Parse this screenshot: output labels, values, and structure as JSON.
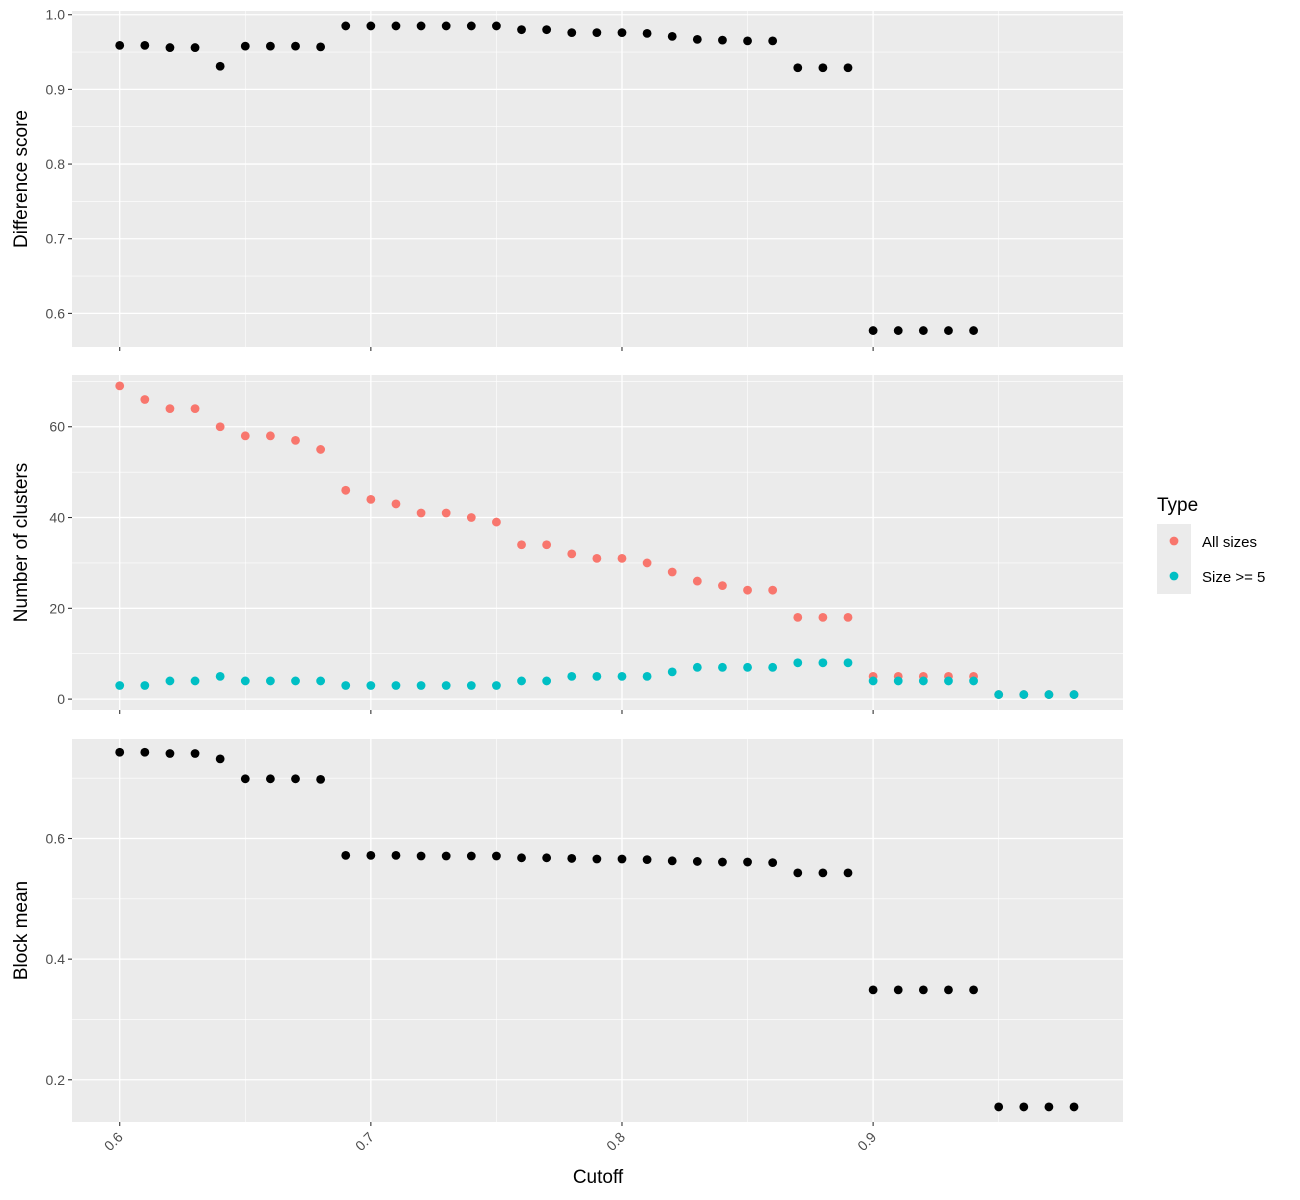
{
  "chart_data": [
    {
      "type": "scatter",
      "ylabel": "Difference score",
      "ylim": [
        0.555,
        1.005
      ],
      "yticks": [
        0.6,
        0.7,
        0.8,
        0.9,
        1.0
      ],
      "ytick_labels": [
        "0.6",
        "0.7",
        "0.8",
        "0.9",
        "1.0"
      ],
      "series": [
        {
          "color": "#000000",
          "points": [
            [
              0.6,
              0.959
            ],
            [
              0.61,
              0.959
            ],
            [
              0.62,
              0.956
            ],
            [
              0.63,
              0.956
            ],
            [
              0.64,
              0.931
            ],
            [
              0.65,
              0.958
            ],
            [
              0.66,
              0.958
            ],
            [
              0.67,
              0.958
            ],
            [
              0.68,
              0.957
            ],
            [
              0.69,
              0.985
            ],
            [
              0.7,
              0.985
            ],
            [
              0.71,
              0.985
            ],
            [
              0.72,
              0.985
            ],
            [
              0.73,
              0.985
            ],
            [
              0.74,
              0.985
            ],
            [
              0.75,
              0.985
            ],
            [
              0.76,
              0.98
            ],
            [
              0.77,
              0.98
            ],
            [
              0.78,
              0.976
            ],
            [
              0.79,
              0.976
            ],
            [
              0.8,
              0.976
            ],
            [
              0.81,
              0.975
            ],
            [
              0.82,
              0.971
            ],
            [
              0.83,
              0.967
            ],
            [
              0.84,
              0.966
            ],
            [
              0.85,
              0.965
            ],
            [
              0.86,
              0.965
            ],
            [
              0.87,
              0.929
            ],
            [
              0.88,
              0.929
            ],
            [
              0.89,
              0.929
            ],
            [
              0.9,
              0.577
            ],
            [
              0.91,
              0.577
            ],
            [
              0.92,
              0.577
            ],
            [
              0.93,
              0.577
            ],
            [
              0.94,
              0.577
            ]
          ]
        }
      ]
    },
    {
      "type": "scatter",
      "ylabel": "Number of clusters",
      "ylim": [
        -2.4,
        71.4
      ],
      "yticks": [
        0,
        20,
        40,
        60
      ],
      "ytick_labels": [
        "0",
        "20",
        "40",
        "60"
      ],
      "series": [
        {
          "name": "All sizes",
          "color": "#F8766D",
          "points": [
            [
              0.6,
              69
            ],
            [
              0.61,
              66
            ],
            [
              0.62,
              64
            ],
            [
              0.63,
              64
            ],
            [
              0.64,
              60
            ],
            [
              0.65,
              58
            ],
            [
              0.66,
              58
            ],
            [
              0.67,
              57
            ],
            [
              0.68,
              55
            ],
            [
              0.69,
              46
            ],
            [
              0.7,
              44
            ],
            [
              0.71,
              43
            ],
            [
              0.72,
              41
            ],
            [
              0.73,
              41
            ],
            [
              0.74,
              40
            ],
            [
              0.75,
              39
            ],
            [
              0.76,
              34
            ],
            [
              0.77,
              34
            ],
            [
              0.78,
              32
            ],
            [
              0.79,
              31
            ],
            [
              0.8,
              31
            ],
            [
              0.81,
              30
            ],
            [
              0.82,
              28
            ],
            [
              0.83,
              26
            ],
            [
              0.84,
              25
            ],
            [
              0.85,
              24
            ],
            [
              0.86,
              24
            ],
            [
              0.87,
              18
            ],
            [
              0.88,
              18
            ],
            [
              0.89,
              18
            ],
            [
              0.9,
              5
            ],
            [
              0.91,
              5
            ],
            [
              0.92,
              5
            ],
            [
              0.93,
              5
            ],
            [
              0.94,
              5
            ],
            [
              0.95,
              1
            ],
            [
              0.96,
              1
            ],
            [
              0.97,
              1
            ],
            [
              0.98,
              1
            ]
          ]
        },
        {
          "name": "Size >= 5",
          "color": "#00BFC4",
          "points": [
            [
              0.6,
              3
            ],
            [
              0.61,
              3
            ],
            [
              0.62,
              4
            ],
            [
              0.63,
              4
            ],
            [
              0.64,
              5
            ],
            [
              0.65,
              4
            ],
            [
              0.66,
              4
            ],
            [
              0.67,
              4
            ],
            [
              0.68,
              4
            ],
            [
              0.69,
              3
            ],
            [
              0.7,
              3
            ],
            [
              0.71,
              3
            ],
            [
              0.72,
              3
            ],
            [
              0.73,
              3
            ],
            [
              0.74,
              3
            ],
            [
              0.75,
              3
            ],
            [
              0.76,
              4
            ],
            [
              0.77,
              4
            ],
            [
              0.78,
              5
            ],
            [
              0.79,
              5
            ],
            [
              0.8,
              5
            ],
            [
              0.81,
              5
            ],
            [
              0.82,
              6
            ],
            [
              0.83,
              7
            ],
            [
              0.84,
              7
            ],
            [
              0.85,
              7
            ],
            [
              0.86,
              7
            ],
            [
              0.87,
              8
            ],
            [
              0.88,
              8
            ],
            [
              0.89,
              8
            ],
            [
              0.9,
              4
            ],
            [
              0.91,
              4
            ],
            [
              0.92,
              4
            ],
            [
              0.93,
              4
            ],
            [
              0.94,
              4
            ],
            [
              0.95,
              1
            ],
            [
              0.96,
              1
            ],
            [
              0.97,
              1
            ],
            [
              0.98,
              1
            ]
          ]
        }
      ]
    },
    {
      "type": "scatter",
      "ylabel": "Block mean",
      "ylim": [
        0.13,
        0.765
      ],
      "yticks": [
        0.2,
        0.4,
        0.6
      ],
      "ytick_labels": [
        "0.2",
        "0.4",
        "0.6"
      ],
      "series": [
        {
          "color": "#000000",
          "points": [
            [
              0.6,
              0.743
            ],
            [
              0.61,
              0.743
            ],
            [
              0.62,
              0.741
            ],
            [
              0.63,
              0.741
            ],
            [
              0.64,
              0.732
            ],
            [
              0.65,
              0.699
            ],
            [
              0.66,
              0.699
            ],
            [
              0.67,
              0.699
            ],
            [
              0.68,
              0.698
            ],
            [
              0.69,
              0.572
            ],
            [
              0.7,
              0.572
            ],
            [
              0.71,
              0.572
            ],
            [
              0.72,
              0.571
            ],
            [
              0.73,
              0.571
            ],
            [
              0.74,
              0.571
            ],
            [
              0.75,
              0.571
            ],
            [
              0.76,
              0.568
            ],
            [
              0.77,
              0.568
            ],
            [
              0.78,
              0.567
            ],
            [
              0.79,
              0.566
            ],
            [
              0.8,
              0.566
            ],
            [
              0.81,
              0.565
            ],
            [
              0.82,
              0.563
            ],
            [
              0.83,
              0.562
            ],
            [
              0.84,
              0.561
            ],
            [
              0.85,
              0.561
            ],
            [
              0.86,
              0.56
            ],
            [
              0.87,
              0.543
            ],
            [
              0.88,
              0.543
            ],
            [
              0.89,
              0.543
            ],
            [
              0.9,
              0.349
            ],
            [
              0.91,
              0.349
            ],
            [
              0.92,
              0.349
            ],
            [
              0.93,
              0.349
            ],
            [
              0.94,
              0.349
            ],
            [
              0.95,
              0.155
            ],
            [
              0.96,
              0.155
            ],
            [
              0.97,
              0.155
            ],
            [
              0.98,
              0.155
            ]
          ]
        }
      ]
    }
  ],
  "x_axis": {
    "label": "Cutoff",
    "xlim": [
      0.581,
      0.9995
    ],
    "ticks": [
      0.6,
      0.7,
      0.8,
      0.9
    ],
    "tick_labels": [
      "0.6",
      "0.7",
      "0.8",
      "0.9"
    ]
  },
  "legend": {
    "title": "Type",
    "placement": "right",
    "items": [
      {
        "label": "All sizes",
        "color": "#F8766D"
      },
      {
        "label": "Size >= 5",
        "color": "#00BFC4"
      }
    ]
  },
  "theme": {
    "panel_background": "#EBEBEB",
    "grid_color": "#FFFFFF"
  }
}
